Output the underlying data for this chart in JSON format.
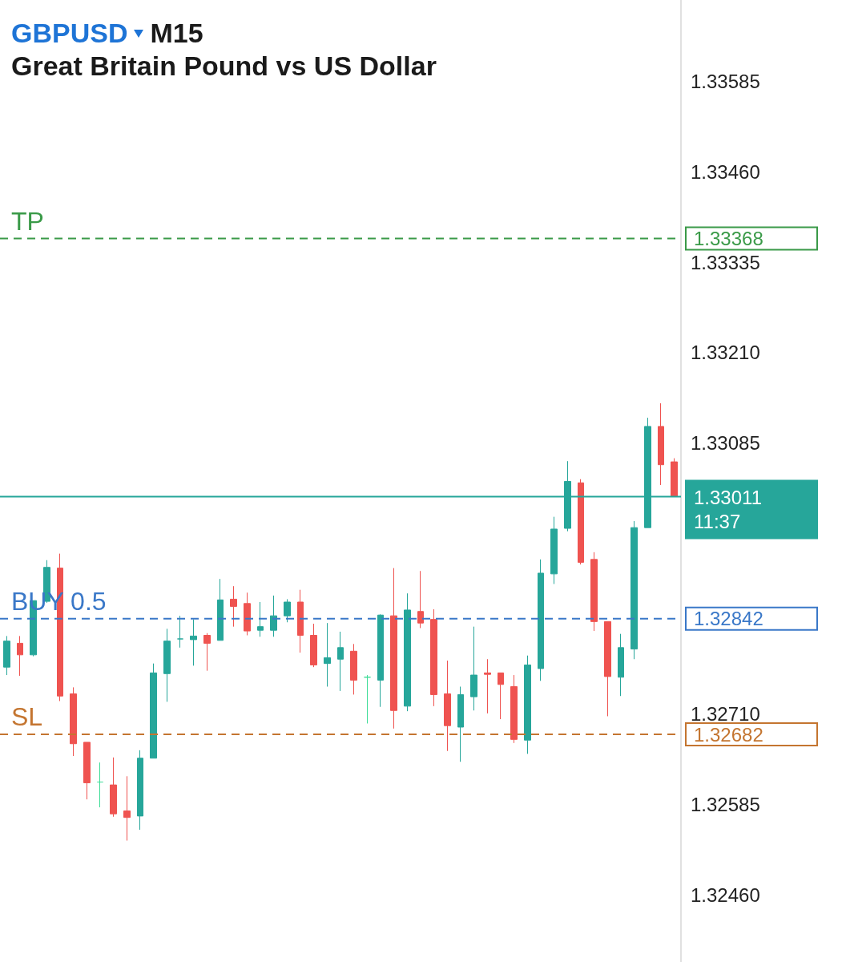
{
  "chart_data": {
    "type": "candlestick",
    "title": "GBPUSD M15",
    "subtitle": "Great Britain Pound vs US Dollar",
    "categories": [
      null,
      null,
      null,
      null,
      null,
      null,
      null,
      null,
      null,
      null,
      null,
      null,
      null,
      null,
      null,
      null,
      null,
      null,
      null,
      null,
      null,
      null,
      null,
      null,
      null,
      null,
      null,
      null,
      null,
      null,
      null,
      null,
      null,
      null,
      null,
      null,
      null,
      null,
      null,
      null,
      null,
      null,
      null,
      null,
      null,
      null,
      null,
      null,
      null,
      null,
      null
    ],
    "ohlc": [
      [
        1.32775,
        1.32818,
        1.32764,
        1.32811
      ],
      [
        1.32808,
        1.32818,
        1.32763,
        1.32792
      ],
      [
        1.32792,
        1.32867,
        1.3279,
        1.32867
      ],
      [
        1.32866,
        1.32923,
        1.32864,
        1.32913
      ],
      [
        1.32912,
        1.32932,
        1.32728,
        1.32735
      ],
      [
        1.32738,
        1.32747,
        1.32652,
        1.32669
      ],
      [
        1.32671,
        1.32671,
        1.32592,
        1.32615
      ],
      [
        1.32616,
        1.32643,
        1.32581,
        1.32616
      ],
      [
        1.32612,
        1.3265,
        1.32568,
        1.32572
      ],
      [
        1.32576,
        1.32624,
        1.32535,
        1.32567
      ],
      [
        1.32569,
        1.3266,
        1.3255,
        1.32649
      ],
      [
        1.32649,
        1.3278,
        1.32649,
        1.32767
      ],
      [
        1.32766,
        1.32828,
        1.32727,
        1.32811
      ],
      [
        1.32814,
        1.32846,
        1.32802,
        1.32814
      ],
      [
        1.32813,
        1.32841,
        1.32777,
        1.32818
      ],
      [
        1.32819,
        1.32822,
        1.3277,
        1.32808
      ],
      [
        1.32812,
        1.32897,
        1.32812,
        1.32868
      ],
      [
        1.32869,
        1.32887,
        1.32831,
        1.32859
      ],
      [
        1.32863,
        1.32878,
        1.32819,
        1.32825
      ],
      [
        1.32826,
        1.32865,
        1.32817,
        1.32831
      ],
      [
        1.32826,
        1.32874,
        1.32817,
        1.32846
      ],
      [
        1.32846,
        1.32869,
        1.32837,
        1.32865
      ],
      [
        1.32865,
        1.32882,
        1.32795,
        1.32819
      ],
      [
        1.32819,
        1.32835,
        1.32775,
        1.32778
      ],
      [
        1.3278,
        1.32836,
        1.32748,
        1.32788
      ],
      [
        1.32786,
        1.32824,
        1.32742,
        1.32802
      ],
      [
        1.32797,
        1.32807,
        1.32737,
        1.32757
      ],
      [
        1.32761,
        1.32764,
        1.32697,
        1.32761
      ],
      [
        1.32757,
        1.32848,
        1.3272,
        1.32847
      ],
      [
        1.32846,
        1.32912,
        1.3269,
        1.32715
      ],
      [
        1.32721,
        1.32877,
        1.32714,
        1.32854
      ],
      [
        1.32852,
        1.32908,
        1.32829,
        1.32836
      ],
      [
        1.32841,
        1.32855,
        1.32721,
        1.32737
      ],
      [
        1.32738,
        1.32784,
        1.32659,
        1.32694
      ],
      [
        1.32692,
        1.32748,
        1.32644,
        1.32737
      ],
      [
        1.32734,
        1.32831,
        1.32715,
        1.32764
      ],
      [
        1.32767,
        1.32786,
        1.32711,
        1.32765
      ],
      [
        1.32767,
        1.32767,
        1.32703,
        1.32751
      ],
      [
        1.32748,
        1.32764,
        1.3267,
        1.32675
      ],
      [
        1.32674,
        1.32791,
        1.32655,
        1.32778
      ],
      [
        1.32773,
        1.32924,
        1.32756,
        1.32905
      ],
      [
        1.32904,
        1.32983,
        1.3289,
        1.32966
      ],
      [
        1.32967,
        1.3306,
        1.32963,
        1.33032
      ],
      [
        1.3303,
        1.33035,
        1.32917,
        1.3292
      ],
      [
        1.32924,
        1.32934,
        1.32825,
        1.32838
      ],
      [
        1.32838,
        1.32838,
        1.32707,
        1.32762
      ],
      [
        1.32761,
        1.32821,
        1.32735,
        1.32802
      ],
      [
        1.328,
        1.32977,
        1.32786,
        1.32968
      ],
      [
        1.32968,
        1.3312,
        1.32968,
        1.33108
      ],
      [
        1.33108,
        1.3314,
        1.33027,
        1.33055
      ],
      [
        1.33059,
        1.33064,
        1.33011,
        1.33011
      ]
    ],
    "colors": [
      "#26a69a",
      "#ef5350",
      "#26a69a",
      "#26a69a",
      "#ef5350",
      "#ef5350",
      "#ef5350",
      "#3ddc97",
      "#ef5350",
      "#ef5350",
      "#26a69a",
      "#26a69a",
      "#26a69a",
      "#26a69a",
      "#26a69a",
      "#ef5350",
      "#26a69a",
      "#ef5350",
      "#ef5350",
      "#26a69a",
      "#26a69a",
      "#26a69a",
      "#ef5350",
      "#ef5350",
      "#26a69a",
      "#26a69a",
      "#ef5350",
      "#3ddc97",
      "#26a69a",
      "#ef5350",
      "#26a69a",
      "#ef5350",
      "#ef5350",
      "#ef5350",
      "#26a69a",
      "#26a69a",
      "#ef5350",
      "#ef5350",
      "#ef5350",
      "#26a69a",
      "#26a69a",
      "#26a69a",
      "#26a69a",
      "#ef5350",
      "#ef5350",
      "#ef5350",
      "#26a69a",
      "#26a69a",
      "#26a69a",
      "#ef5350",
      "#ef5350"
    ],
    "ylim": [
      1.32367,
      1.33698
    ],
    "yticks": [
      {
        "value": 1.3246,
        "label": "1.32460"
      },
      1.32585,
      {
        "value": 1.3271,
        "label": "1.32710"
      },
      1.33085,
      {
        "value": 1.3321,
        "label": "1.33210"
      },
      1.33335,
      {
        "value": 1.3346,
        "label": "1.33460"
      },
      1.33585
    ],
    "tick_labels": "y",
    "ref_lines": [
      {
        "axis": "y",
        "value": 1.33368,
        "label": "TP",
        "color": "#3a9a48",
        "line_style": "dashed"
      },
      {
        "axis": "y",
        "value": 1.32842,
        "label": "BUY 0.5",
        "color": "#3a78c8",
        "line_style": "dashed"
      },
      {
        "axis": "y",
        "value": 1.32682,
        "label": "SL",
        "color": "#c47530",
        "line_style": "dashed"
      },
      {
        "axis": "y",
        "value": 1.33011,
        "color": "#26a69a",
        "line_style": "solid"
      }
    ],
    "annotations": [
      "1.33368",
      "1.32842",
      "1.32682",
      "1.33011",
      "11:37"
    ]
  }
}
